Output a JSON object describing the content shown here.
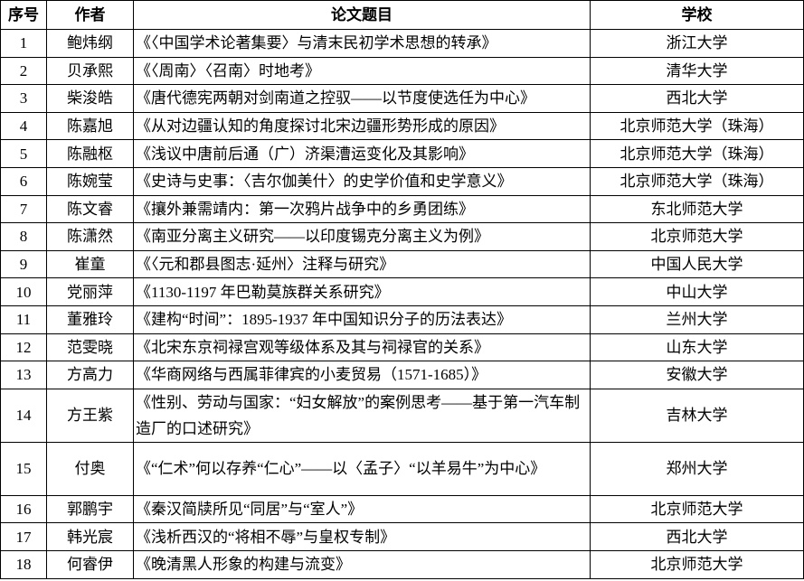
{
  "headers": {
    "no": "序号",
    "author": "作者",
    "title": "论文题目",
    "school": "学校"
  },
  "rows": [
    {
      "no": "1",
      "author": "鲍炜纲",
      "title": "《〈中国学术论著集要〉与清末民初学术思想的转承》",
      "school": "浙江大学"
    },
    {
      "no": "2",
      "author": "贝承熙",
      "title": "《〈周南〉〈召南〉时地考》",
      "school": "清华大学"
    },
    {
      "no": "3",
      "author": "柴浚皓",
      "title": "《唐代德宪两朝对剑南道之控驭——以节度使选任为中心》",
      "school": "西北大学"
    },
    {
      "no": "4",
      "author": "陈嘉旭",
      "title": "《从对边疆认知的角度探讨北宋边疆形势形成的原因》",
      "school": "北京师范大学（珠海）"
    },
    {
      "no": "5",
      "author": "陈融枢",
      "title": "《浅议中唐前后通（广）济渠漕运变化及其影响》",
      "school": "北京师范大学（珠海）"
    },
    {
      "no": "6",
      "author": "陈婉莹",
      "title": "《史诗与史事：〈吉尔伽美什〉的史学价值和史学意义》",
      "school": "北京师范大学（珠海）"
    },
    {
      "no": "7",
      "author": "陈文睿",
      "title": "《攘外兼需靖内：第一次鸦片战争中的乡勇团练》",
      "school": "东北师范大学"
    },
    {
      "no": "8",
      "author": "陈潇然",
      "title": "《南亚分离主义研究——以印度锡克分离主义为例》",
      "school": "北京师范大学"
    },
    {
      "no": "9",
      "author": "崔童",
      "title": "《〈元和郡县图志·延州〉注释与研究》",
      "school": "中国人民大学"
    },
    {
      "no": "10",
      "author": "党丽萍",
      "title": "《1130-1197 年巴勒莫族群关系研究》",
      "school": "中山大学"
    },
    {
      "no": "11",
      "author": "董雅玲",
      "title": "《建构“时间”：1895-1937 年中国知识分子的历法表达》",
      "school": "兰州大学"
    },
    {
      "no": "12",
      "author": "范雯晓",
      "title": "《北宋东京祠禄宫观等级体系及其与祠禄官的关系》",
      "school": "山东大学"
    },
    {
      "no": "13",
      "author": "方高力",
      "title": "《华商网络与西属菲律宾的小麦贸易（1571-1685）》",
      "school": "安徽大学"
    },
    {
      "no": "14",
      "author": "方王紫",
      "title": "《性别、劳动与国家：“妇女解放”的案例思考——基于第一汽车制造厂的口述研究》",
      "school": "吉林大学"
    },
    {
      "no": "15",
      "author": "付奥",
      "title": "《“仁术”何以存养“仁心”——以〈孟子〉“以羊易牛”为中心》",
      "school": "郑州大学"
    },
    {
      "no": "16",
      "author": "郭鹏宇",
      "title": "《秦汉简牍所见“同居”与“室人”》",
      "school": "北京师范大学"
    },
    {
      "no": "17",
      "author": "韩光宸",
      "title": "《浅析西汉的“将相不辱”与皇权专制》",
      "school": "西北大学"
    },
    {
      "no": "18",
      "author": "何睿伊",
      "title": "《晚清黑人形象的构建与流变》",
      "school": "北京师范大学"
    }
  ]
}
